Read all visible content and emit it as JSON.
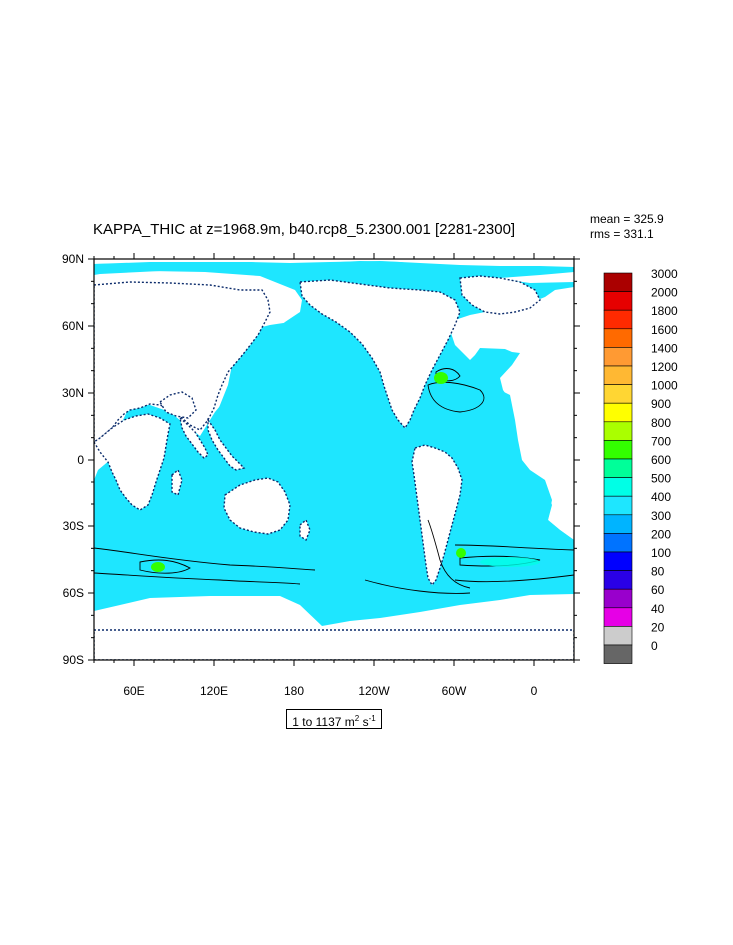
{
  "title": "KAPPA_THIC at z=1968.9m, b40.rcp8_5.2300.001 [2281-2300]",
  "stats": {
    "mean": "mean = 325.9",
    "rms": "rms = 331.1"
  },
  "axes": {
    "lat_ticks": [
      "90N",
      "60N",
      "30N",
      "0",
      "30S",
      "60S",
      "90S"
    ],
    "lon_ticks": [
      "60E",
      "120E",
      "180",
      "120W",
      "60W",
      "0"
    ]
  },
  "range_label": {
    "prefix": "1 to 1137 m",
    "exp1": "2",
    "mid": " s",
    "exp2": "-1"
  },
  "colorbar": {
    "levels": [
      "3000",
      "2000",
      "1800",
      "1600",
      "1400",
      "1200",
      "1000",
      "900",
      "800",
      "700",
      "600",
      "500",
      "400",
      "300",
      "200",
      "100",
      "80",
      "60",
      "40",
      "20",
      "0"
    ],
    "colors": [
      "#aa0000",
      "#e60000",
      "#ff2a00",
      "#ff6a00",
      "#ff9a33",
      "#ffb833",
      "#ffd633",
      "#ffff00",
      "#aaff00",
      "#33ff00",
      "#00ff99",
      "#00ffe6",
      "#1ee6ff",
      "#00b4ff",
      "#0073ff",
      "#0000ff",
      "#2a00e6",
      "#9900cc",
      "#e600e6",
      "#cccccc",
      "#666666"
    ]
  },
  "colors": {
    "ocean": "#1ee6ff",
    "land": "#ffffff",
    "coast": "#0a2a6a",
    "high_kappa": "#33ff00",
    "mid_kappa": "#00ffe6"
  }
}
